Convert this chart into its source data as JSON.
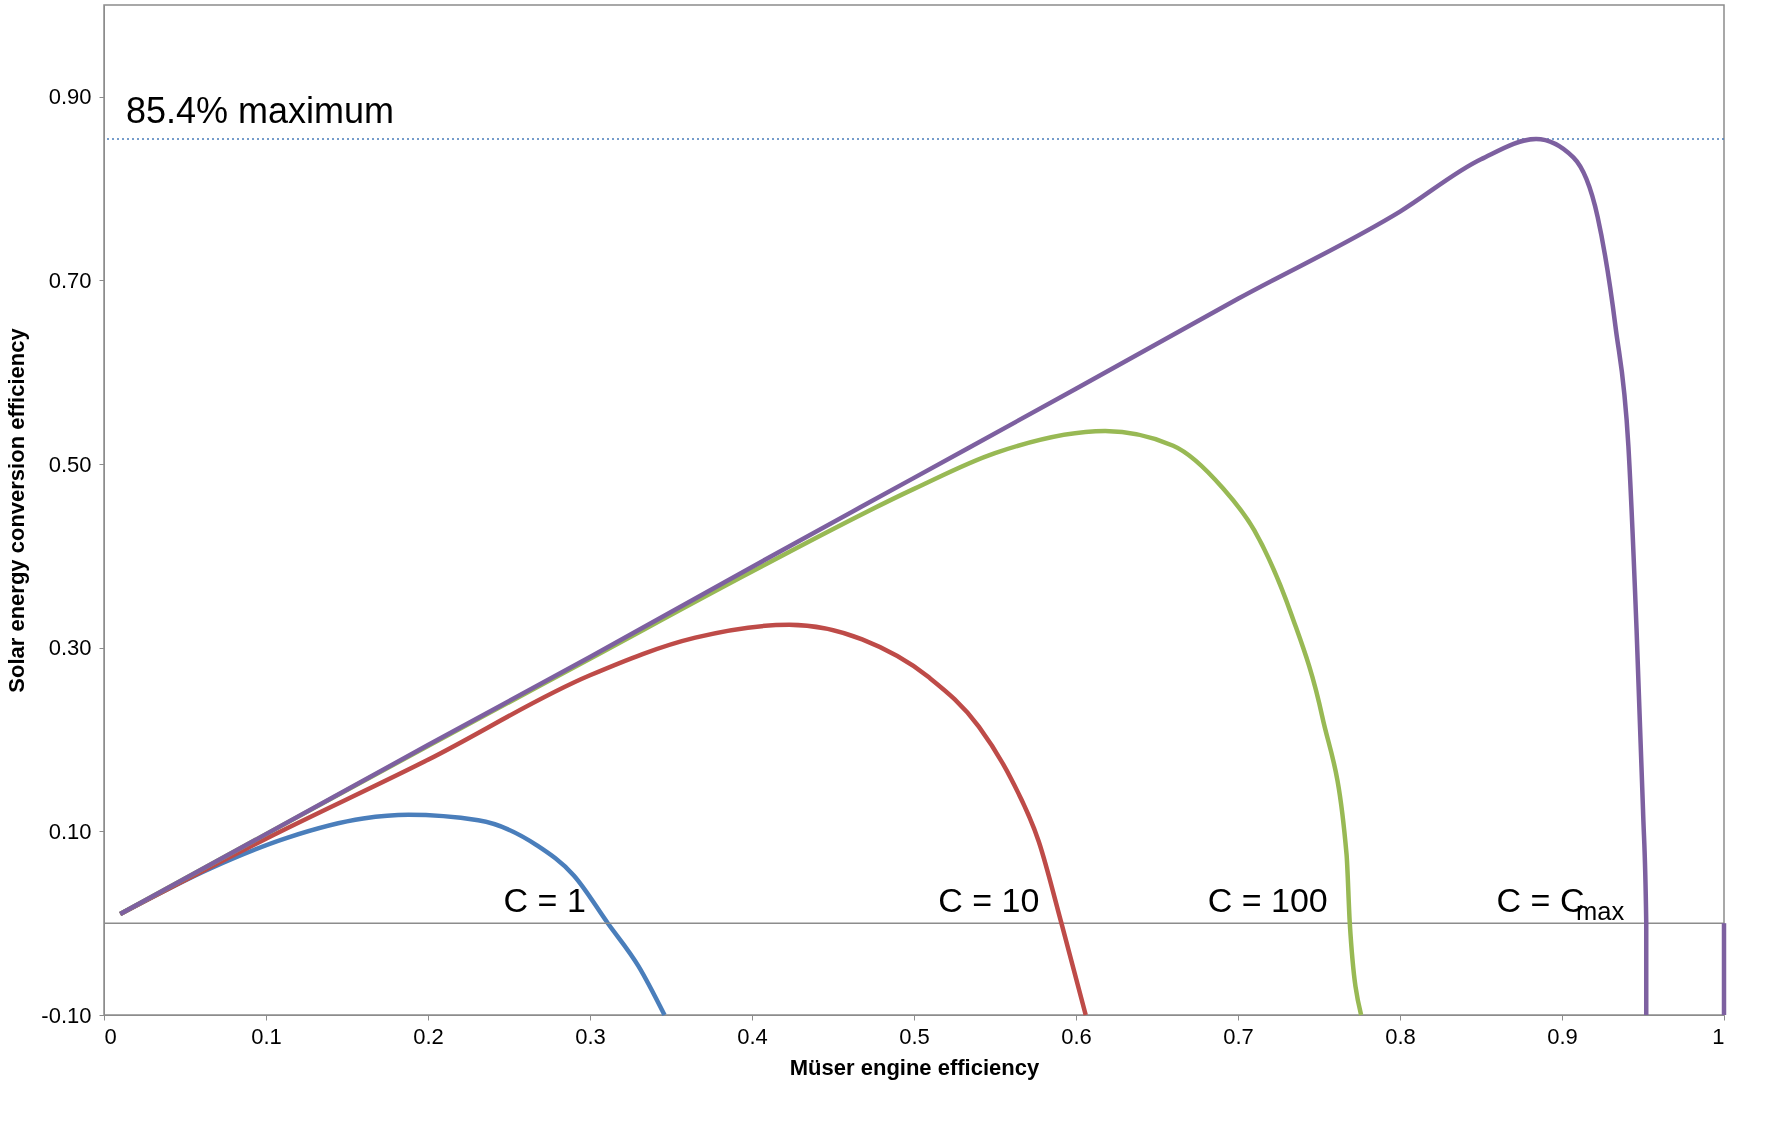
{
  "chart_data": {
    "type": "line",
    "xlabel": "Müser engine efficiency",
    "ylabel": "Solar energy conversion efficiency",
    "xlim": [
      0,
      1
    ],
    "ylim": [
      -0.1,
      1.0
    ],
    "xticks": [
      0,
      0.1,
      0.2,
      0.3,
      0.4,
      0.5,
      0.6,
      0.7,
      0.8,
      0.9,
      1
    ],
    "yticks": [
      {
        "value": -0.1,
        "label": "-0.10"
      },
      {
        "value": 0.1,
        "label": "0.10"
      },
      {
        "value": 0.3,
        "label": "0.30"
      },
      {
        "value": 0.5,
        "label": "0.50"
      },
      {
        "value": 0.7,
        "label": "0.70"
      },
      {
        "value": 0.9,
        "label": "0.90"
      }
    ],
    "grid": false,
    "marker": "none",
    "line_style": "solid",
    "series": [
      {
        "name": "C = 1",
        "color": "#4a7ebb",
        "x": [
          0.01,
          0.066,
          0.113,
          0.16,
          0.188,
          0.231,
          0.267,
          0.29,
          0.311,
          0.33,
          0.346
        ],
        "values": [
          0.01,
          0.06,
          0.093,
          0.114,
          0.118,
          0.112,
          0.085,
          0.052,
          0.0,
          -0.047,
          -0.1
        ]
      },
      {
        "name": "C = 10",
        "color": "#be4b48",
        "x": [
          0.01,
          0.1,
          0.2,
          0.3,
          0.365,
          0.423,
          0.468,
          0.509,
          0.54,
          0.56,
          0.577,
          0.591,
          0.606
        ],
        "values": [
          0.01,
          0.092,
          0.178,
          0.27,
          0.311,
          0.325,
          0.309,
          0.268,
          0.214,
          0.157,
          0.089,
          0.0,
          -0.1
        ]
      },
      {
        "name": "C = 100",
        "color": "#98b954",
        "x": [
          0.01,
          0.1,
          0.2,
          0.3,
          0.4,
          0.5,
          0.55,
          0.618,
          0.66,
          0.69,
          0.71,
          0.733,
          0.752,
          0.767,
          0.769,
          0.776
        ],
        "values": [
          0.01,
          0.097,
          0.193,
          0.288,
          0.383,
          0.473,
          0.512,
          0.536,
          0.52,
          0.475,
          0.428,
          0.336,
          0.225,
          0.075,
          0.0,
          -0.1
        ]
      },
      {
        "name": "C = C$_{max}$",
        "color": "#7d60a0",
        "x": [
          0.01,
          0.1,
          0.2,
          0.3,
          0.4,
          0.5,
          0.6,
          0.7,
          0.8,
          0.85,
          0.884,
          0.907,
          0.922,
          0.933,
          0.941,
          0.946,
          0.95,
          0.952,
          0.952,
          null,
          1.0,
          1.0
        ],
        "values": [
          0.01,
          0.097,
          0.194,
          0.29,
          0.388,
          0.485,
          0.582,
          0.68,
          0.775,
          0.832,
          0.854,
          0.834,
          0.769,
          0.65,
          0.519,
          0.321,
          0.124,
          0.0,
          -0.1,
          null,
          -0.1,
          0.0
        ]
      }
    ],
    "ref_lines": [
      {
        "axis": "y",
        "value": 0.854,
        "label": "85.4% maximum",
        "color": "#4a7ebb",
        "line_style": "dotted"
      },
      {
        "axis": "y",
        "value": 0,
        "color": "#8c8c8c",
        "line_style": "solid"
      }
    ]
  }
}
